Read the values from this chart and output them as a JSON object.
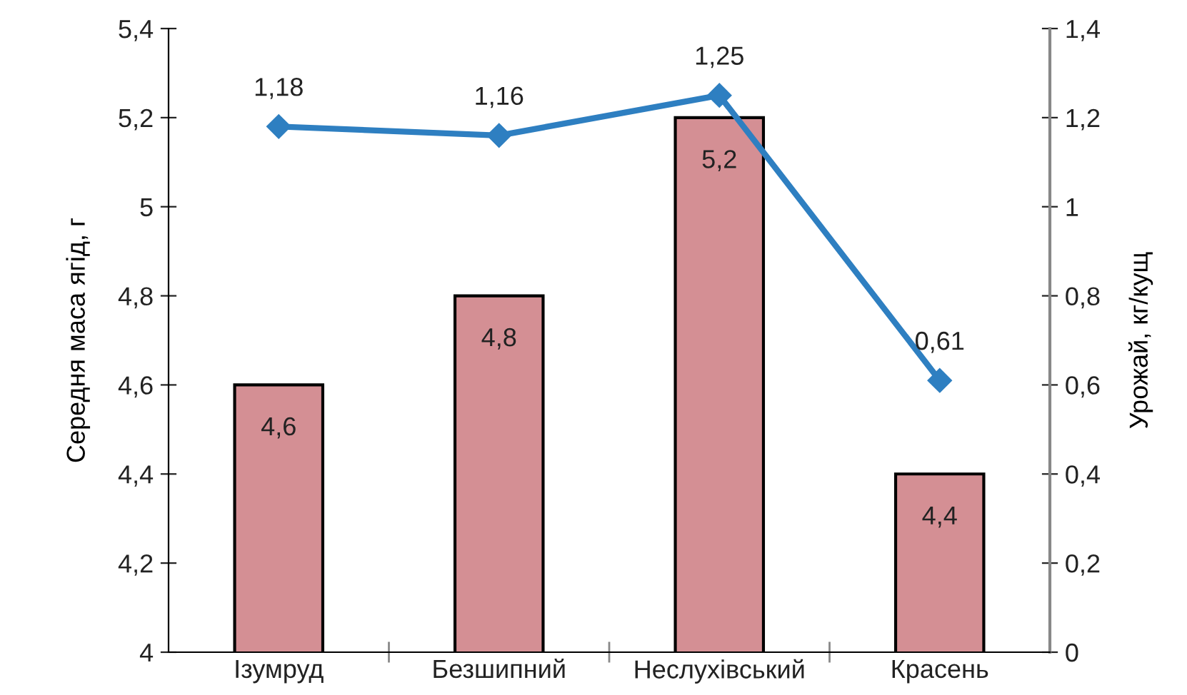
{
  "chart_data": {
    "type": "bar",
    "categories": [
      "Ізумруд",
      "Безшипний",
      "Неслухівський",
      "Красень"
    ],
    "ylabel": "Середня маса ягід, г",
    "y2label": "Урожай, кг/кущ",
    "series": [
      {
        "color": "#d48f94",
        "values": [
          4.6,
          4.8,
          5.2,
          4.4
        ],
        "value_labels": [
          "4,6",
          "4,8",
          "5,2",
          "4,4"
        ]
      },
      {
        "type": "line",
        "axis": "y2",
        "color": "#2e7fc1",
        "marker": "diamond",
        "values": [
          1.18,
          1.16,
          1.25,
          0.61
        ],
        "value_labels": [
          "1,18",
          "1,16",
          "1,25",
          "0,61"
        ]
      }
    ],
    "ylim": [
      4,
      5.4
    ],
    "yticks": [
      4,
      {
        "value": 4.2,
        "label": "4,2"
      },
      {
        "value": 4.4,
        "label": "4,4"
      },
      {
        "value": 4.6,
        "label": "4,6"
      },
      {
        "value": 4.8,
        "label": "4,8"
      },
      5,
      {
        "value": 5.2,
        "label": "5,2"
      },
      {
        "value": 5.4,
        "label": "5,4"
      }
    ],
    "y2lim": [
      0,
      1.4
    ],
    "y2ticks": [
      0,
      {
        "value": 0.2,
        "label": "0,2"
      },
      {
        "value": 0.4,
        "label": "0,4"
      },
      {
        "value": 0.6,
        "label": "0,6"
      },
      {
        "value": 0.8,
        "label": "0,8"
      },
      1,
      {
        "value": 1.2,
        "label": "1,2"
      },
      {
        "value": 1.4,
        "label": "1,4"
      }
    ],
    "grid": false,
    "legend": false
  }
}
